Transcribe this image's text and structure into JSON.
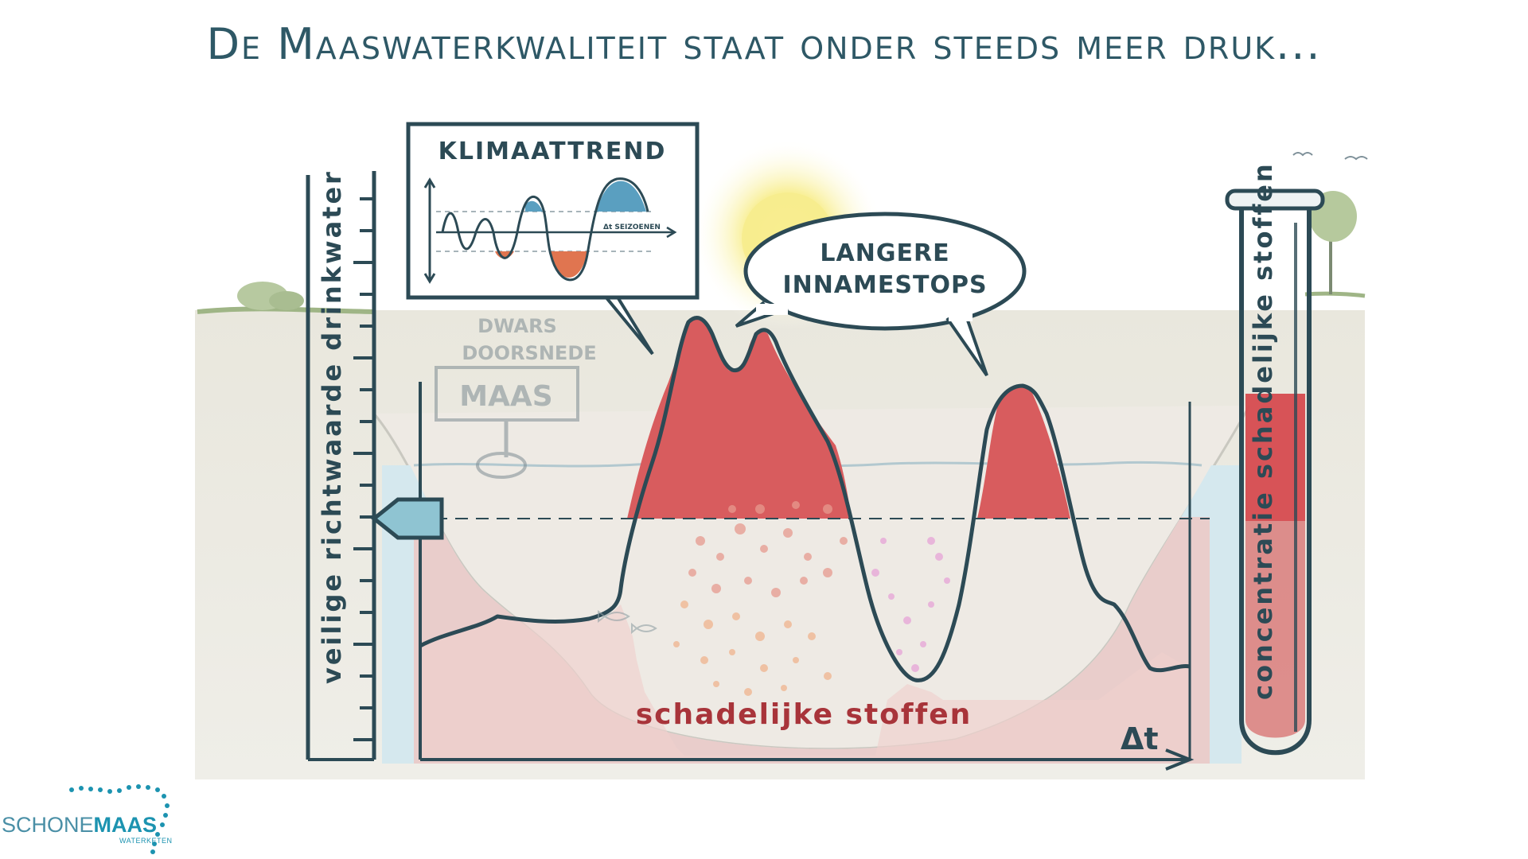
{
  "title": "De Maaswaterkwaliteit staat onder steeds meer druk...",
  "klimaat": {
    "title": "KLIMAATTREND",
    "axis_label": "Δt SEIZOENEN"
  },
  "bubble": {
    "line1": "LANGERE",
    "line2": "INNAMESTOPS"
  },
  "sign": {
    "line1": "DWARS",
    "line2": "DOORSNEDE",
    "line3": "MAAS"
  },
  "ruler_label": "veilige richtwaarde drinkwater",
  "tube_label": "concentratie schadelijke stoffen",
  "bottom_label": "schadelijke stoffen",
  "time_axis_label": "Δt",
  "logo": {
    "part1": "SCHONE",
    "part2": "MAAS",
    "sub": "WATERKETEN"
  },
  "colors": {
    "title": "#2e5866",
    "outline": "#2c4a55",
    "peak_red": "#d85c5e",
    "water": "#d5e8ee",
    "pollution_pink": "#ecc8c4",
    "label_red": "#a8343a",
    "sun": "#f6ea8a",
    "logo": "#1c93b0"
  }
}
